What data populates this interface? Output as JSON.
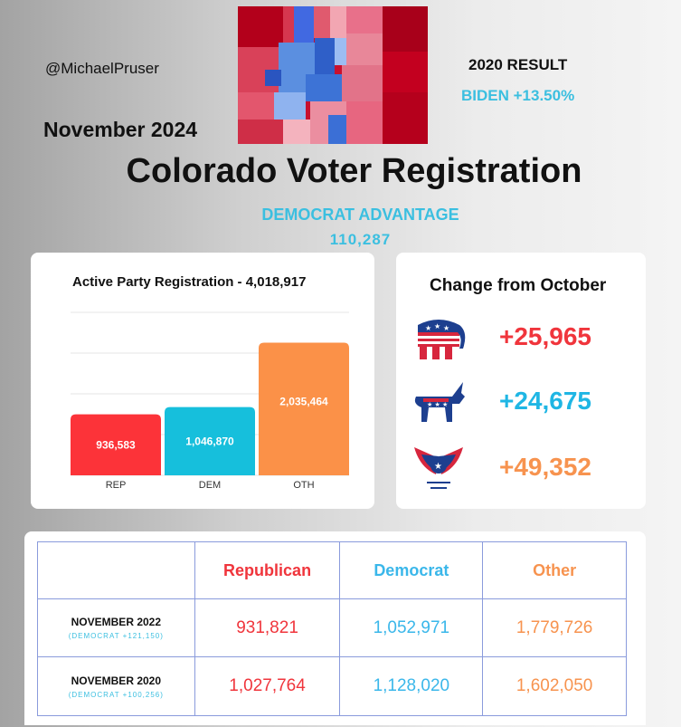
{
  "header": {
    "handle": "@MichaelPruser",
    "month": "November 2024",
    "result_label": "2020 RESULT",
    "result_value": "BIDEN +13.50%",
    "title": "Colorado Voter Registration",
    "advantage_label": "DEMOCRAT ADVANTAGE",
    "advantage_value": "110,287"
  },
  "colors": {
    "rep": "#fc3339",
    "dem": "#16bfdc",
    "oth": "#fb9148",
    "dem_text": "#3bbfe0"
  },
  "chart_data": {
    "type": "bar",
    "title": "Active Party Registration - 4,018,917",
    "categories": [
      "REP",
      "DEM",
      "OTH"
    ],
    "values": [
      936583,
      1046870,
      2035464
    ],
    "value_labels": [
      "936,583",
      "1,046,870",
      "2,035,464"
    ],
    "ylim": [
      0,
      2500000
    ],
    "grid": true
  },
  "change": {
    "title": "Change from October",
    "items": [
      {
        "icon": "republican-elephant-icon",
        "value": "+25,965",
        "color": "#f0353c"
      },
      {
        "icon": "democrat-donkey-icon",
        "value": "+24,675",
        "color": "#1fb6e4"
      },
      {
        "icon": "eagle-icon",
        "value": "+49,352",
        "color": "#f7934f"
      }
    ]
  },
  "table": {
    "headers": [
      "Republican",
      "Democrat",
      "Other"
    ],
    "rows": [
      {
        "label": "NOVEMBER 2022",
        "sub": "(DEMOCRAT +121,150)",
        "values": [
          "931,821",
          "1,052,971",
          "1,779,726"
        ]
      },
      {
        "label": "NOVEMBER 2020",
        "sub": "(DEMOCRAT +100,256)",
        "values": [
          "1,027,764",
          "1,128,020",
          "1,602,050"
        ]
      }
    ]
  }
}
